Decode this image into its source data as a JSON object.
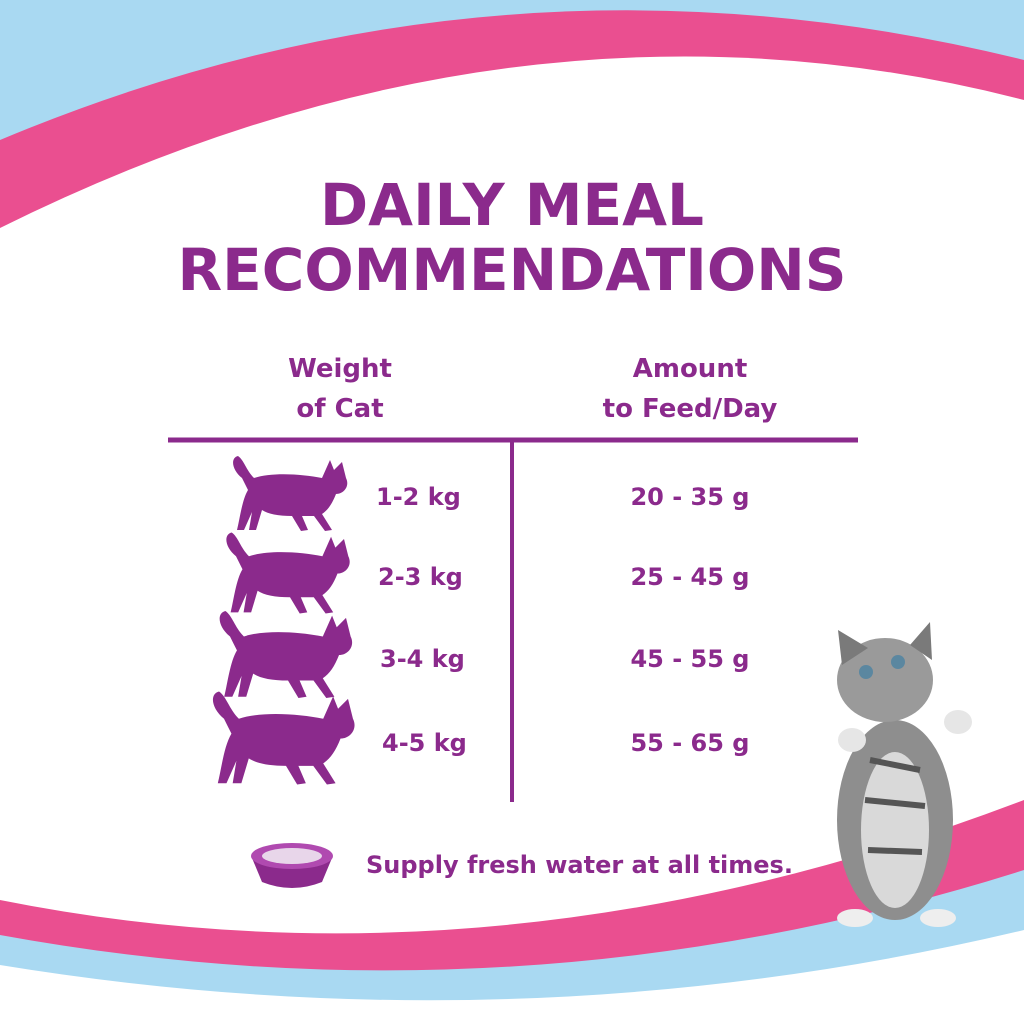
{
  "title": {
    "lines": [
      "DAILY MEAL",
      "RECOMMENDATIONS"
    ]
  },
  "table": {
    "headers": [
      [
        "Weight",
        "of Cat"
      ],
      [
        "Amount",
        "to Feed/Day"
      ]
    ],
    "rows": [
      [
        "1-2 kg",
        "20 - 35 g"
      ],
      [
        "2-3 kg",
        "25 - 45 g"
      ],
      [
        "3-4 kg",
        "45 - 55 g"
      ],
      [
        "4-5 kg",
        "55 - 65 g"
      ]
    ]
  },
  "note": "Supply fresh water at all times."
}
